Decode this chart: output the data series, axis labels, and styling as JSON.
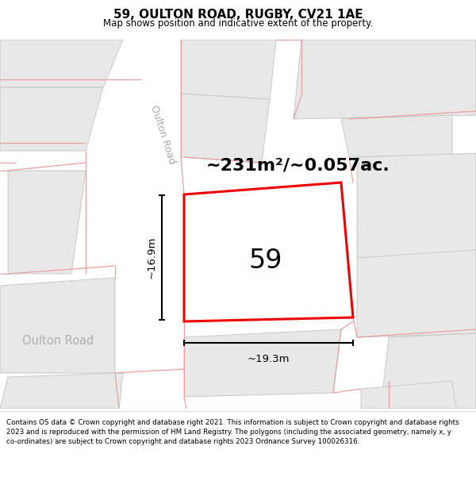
{
  "title": "59, OULTON ROAD, RUGBY, CV21 1AE",
  "subtitle": "Map shows position and indicative extent of the property.",
  "footer_text": "Contains OS data © Crown copyright and database right 2021. This information is subject to Crown copyright and database rights 2023 and is reproduced with the permission of HM Land Registry. The polygons (including the associated geometry, namely x, y co-ordinates) are subject to Crown copyright and database rights 2023 Ordnance Survey 100026316.",
  "map_bg": "#f2f2f2",
  "road_color": "#ffffff",
  "building_fill": "#e8e8e8",
  "building_outline": "#c8c8c8",
  "pink_line_color": "#e8a0a0",
  "red_outline_color": "#ee0000",
  "highlight_fill": "#ffffff",
  "area_text": "~231m²/~0.057ac.",
  "number_text": "59",
  "dim_width": "~19.3m",
  "dim_height": "~16.9m",
  "road_label": "Oulton Road",
  "road_label2": "Oulton Road"
}
